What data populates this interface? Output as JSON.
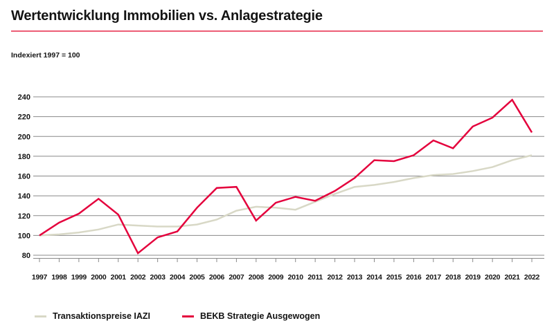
{
  "header": {
    "title": "Wertentwicklung Immobilien vs. Anlagestrategie",
    "subtitle": "Indexiert 1997 = 100"
  },
  "colors": {
    "accent_red": "#e4003c",
    "title_rule_pink": "#ed5c75",
    "iazi_beige": "#d8d8c6",
    "grid_gray": "#888888",
    "text_black": "#131313"
  },
  "legend": {
    "items": [
      {
        "label": "Transaktionspreise IAZI",
        "color": "#d8d8c6"
      },
      {
        "label": "BEKB Strategie Ausgewogen",
        "color": "#e4003c"
      }
    ]
  },
  "chart_data": {
    "type": "line",
    "title": "Wertentwicklung Immobilien vs. Anlagestrategie",
    "subtitle": "Indexiert 1997 = 100",
    "x": [
      1997,
      1998,
      1999,
      2000,
      2001,
      2002,
      2003,
      2004,
      2005,
      2006,
      2007,
      2008,
      2009,
      2010,
      2011,
      2012,
      2013,
      2014,
      2015,
      2016,
      2017,
      2018,
      2019,
      2020,
      2021,
      2022
    ],
    "series": [
      {
        "name": "Transaktionspreise IAZI",
        "color": "#d8d8c6",
        "values": [
          100,
          101,
          103,
          106,
          111,
          110,
          109,
          109,
          111,
          116,
          125,
          129,
          128,
          126,
          134,
          142,
          149,
          151,
          154,
          158,
          161,
          162,
          165,
          169,
          176,
          181
        ]
      },
      {
        "name": "BEKB Strategie Ausgewogen",
        "color": "#e4003c",
        "values": [
          100,
          113,
          122,
          137,
          121,
          82,
          98,
          104,
          128,
          148,
          149,
          115,
          133,
          139,
          135,
          145,
          158,
          176,
          175,
          181,
          196,
          188,
          210,
          219,
          237,
          204
        ]
      }
    ],
    "ylim": [
      80,
      240
    ],
    "ytick_step": 20,
    "grid": true,
    "legend_position": "bottom"
  }
}
